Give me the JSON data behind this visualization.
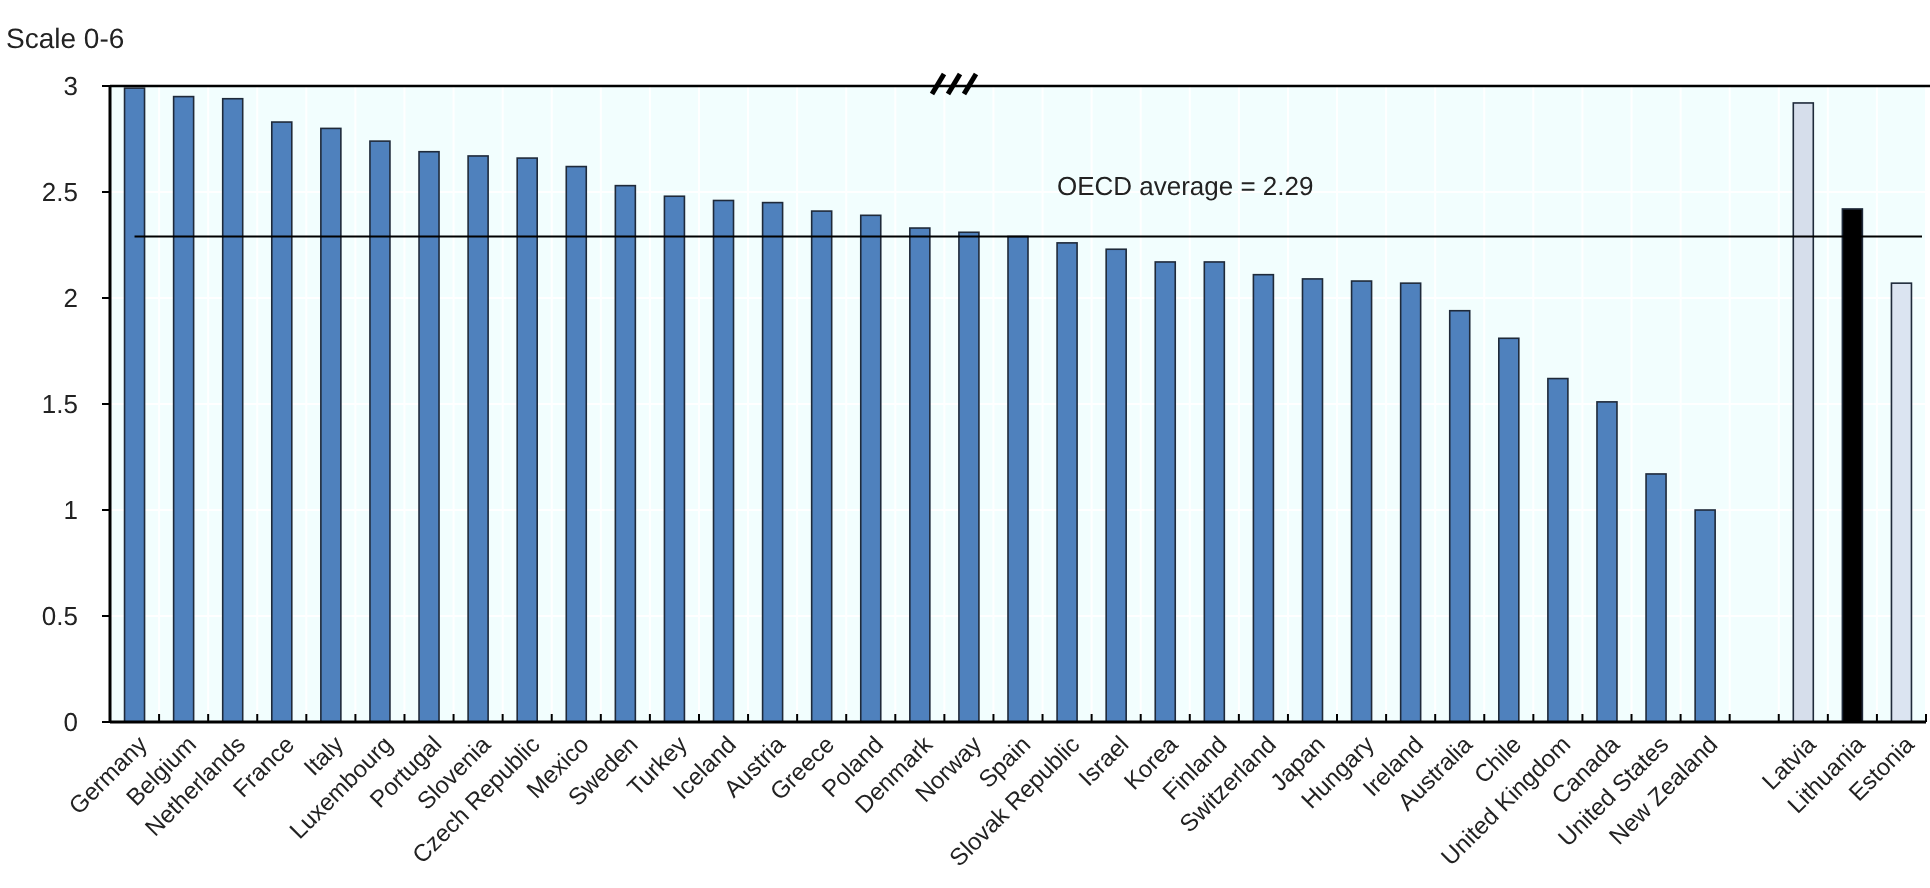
{
  "chart_data": {
    "type": "bar",
    "ylabel": "Scale 0-6",
    "categories": [
      "Germany",
      "Belgium",
      "Netherlands",
      "France",
      "Italy",
      "Luxembourg",
      "Portugal",
      "Slovenia",
      "Czech Republic",
      "Mexico",
      "Sweden",
      "Turkey",
      "Iceland",
      "Austria",
      "Greece",
      "Poland",
      "Denmark",
      "Norway",
      "Spain",
      "Slovak Republic",
      "Israel",
      "Korea",
      "Finland",
      "Switzerland",
      "Japan",
      "Hungary",
      "Ireland",
      "Australia",
      "Chile",
      "United Kingdom",
      "Canada",
      "United States",
      "New Zealand",
      null,
      "Latvia",
      "Lithuania",
      "Estonia"
    ],
    "values": [
      2.99,
      2.95,
      2.94,
      2.83,
      2.8,
      2.74,
      2.69,
      2.67,
      2.66,
      2.62,
      2.53,
      2.48,
      2.46,
      2.45,
      2.41,
      2.39,
      2.33,
      2.31,
      2.29,
      2.26,
      2.23,
      2.17,
      2.17,
      2.11,
      2.09,
      2.08,
      2.07,
      1.94,
      1.81,
      1.62,
      1.51,
      1.17,
      1.0,
      null,
      2.92,
      2.42,
      2.07
    ],
    "colors": [
      "#4f81bd",
      "#4f81bd",
      "#4f81bd",
      "#4f81bd",
      "#4f81bd",
      "#4f81bd",
      "#4f81bd",
      "#4f81bd",
      "#4f81bd",
      "#4f81bd",
      "#4f81bd",
      "#4f81bd",
      "#4f81bd",
      "#4f81bd",
      "#4f81bd",
      "#4f81bd",
      "#4f81bd",
      "#4f81bd",
      "#4f81bd",
      "#4f81bd",
      "#4f81bd",
      "#4f81bd",
      "#4f81bd",
      "#4f81bd",
      "#4f81bd",
      "#4f81bd",
      "#4f81bd",
      "#4f81bd",
      "#4f81bd",
      "#4f81bd",
      "#4f81bd",
      "#4f81bd",
      "#4f81bd",
      null,
      "#d6deeb",
      "#000000",
      "#dbe4f1"
    ],
    "ylim": [
      0,
      3
    ],
    "yticks": [
      0,
      0.5,
      1,
      1.5,
      2,
      2.5,
      3
    ],
    "grid": true,
    "ref_lines": [
      {
        "axis": "y",
        "value": 2.29,
        "label": "OECD average = 2.29",
        "color": "#000000"
      }
    ]
  }
}
